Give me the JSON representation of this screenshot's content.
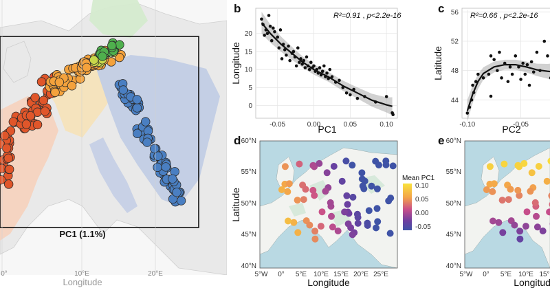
{
  "panel_a": {
    "box_label": "PC1 (1.1%)",
    "xlabel": "Longitude",
    "ticks": [
      "0°",
      "10°E",
      "20°E"
    ]
  },
  "chart_data": [
    {
      "panel": "b",
      "type": "scatter",
      "xlabel": "PC1",
      "ylabel": "Longitude",
      "stat_r2": "R²=0.91",
      "stat_sep": " , ",
      "stat_p": "p<2.2e-16",
      "xlim": [
        -0.08,
        0.115
      ],
      "ylim": [
        -3.5,
        27
      ],
      "xticks": [
        -0.05,
        0.0,
        0.05,
        0.1
      ],
      "xtick_labels": [
        "-0.05",
        "0.00",
        "0.05",
        "0.10"
      ],
      "yticks": [
        0,
        5,
        10,
        15,
        20
      ],
      "yticks_labels": [
        "0",
        "5",
        "10",
        "15",
        "20"
      ],
      "grid": true,
      "trend": [
        [
          -0.072,
          23
        ],
        [
          -0.06,
          20
        ],
        [
          -0.045,
          17
        ],
        [
          -0.03,
          14.5
        ],
        [
          -0.015,
          12
        ],
        [
          0.0,
          10
        ],
        [
          0.02,
          8
        ],
        [
          0.04,
          5.5
        ],
        [
          0.06,
          3.5
        ],
        [
          0.08,
          1.5
        ],
        [
          0.1,
          0.2
        ],
        [
          0.108,
          -0.2
        ]
      ],
      "points": [
        [
          -0.072,
          24
        ],
        [
          -0.07,
          22.5
        ],
        [
          -0.068,
          19.5
        ],
        [
          -0.066,
          21
        ],
        [
          -0.064,
          20
        ],
        [
          -0.062,
          25
        ],
        [
          -0.06,
          22
        ],
        [
          -0.058,
          18
        ],
        [
          -0.056,
          21.5
        ],
        [
          -0.054,
          20.5
        ],
        [
          -0.05,
          19
        ],
        [
          -0.048,
          16
        ],
        [
          -0.046,
          21
        ],
        [
          -0.044,
          13
        ],
        [
          -0.042,
          17
        ],
        [
          -0.04,
          15.5
        ],
        [
          -0.038,
          14
        ],
        [
          -0.035,
          16.5
        ],
        [
          -0.033,
          12.5
        ],
        [
          -0.03,
          14.5
        ],
        [
          -0.028,
          15
        ],
        [
          -0.026,
          13.5
        ],
        [
          -0.024,
          11
        ],
        [
          -0.022,
          16
        ],
        [
          -0.02,
          12
        ],
        [
          -0.018,
          13
        ],
        [
          -0.016,
          11.5
        ],
        [
          -0.014,
          12.5
        ],
        [
          -0.012,
          10.5
        ],
        [
          -0.01,
          13.5
        ],
        [
          -0.008,
          11
        ],
        [
          -0.006,
          10
        ],
        [
          -0.004,
          12
        ],
        [
          -0.002,
          10.5
        ],
        [
          0.0,
          11
        ],
        [
          0.002,
          9.5
        ],
        [
          0.004,
          10
        ],
        [
          0.006,
          9
        ],
        [
          0.008,
          10.5
        ],
        [
          0.01,
          8.5
        ],
        [
          0.012,
          9.5
        ],
        [
          0.014,
          11
        ],
        [
          0.016,
          8
        ],
        [
          0.018,
          9
        ],
        [
          0.02,
          7.5
        ],
        [
          0.022,
          10
        ],
        [
          0.025,
          8
        ],
        [
          0.03,
          6.5
        ],
        [
          0.035,
          7
        ],
        [
          0.04,
          5
        ],
        [
          0.045,
          3.5
        ],
        [
          0.05,
          3
        ],
        [
          0.055,
          4.5
        ],
        [
          0.06,
          2
        ],
        [
          0.07,
          2.5
        ],
        [
          0.085,
          1
        ],
        [
          0.1,
          2.5
        ],
        [
          0.108,
          -2
        ],
        [
          0.109,
          -2.5
        ]
      ]
    },
    {
      "panel": "c",
      "type": "scatter",
      "xlabel": "PC2",
      "ylabel": "Latitude",
      "stat_r2": "R²=0.66",
      "stat_sep": " , ",
      "stat_p": "p<2.2e-16",
      "xlim": [
        -0.105,
        -0.015
      ],
      "ylim": [
        41.5,
        56.5
      ],
      "xticks": [
        -0.1,
        -0.05
      ],
      "xtick_labels": [
        "-0.10",
        "-0.05"
      ],
      "yticks": [
        44,
        48,
        52,
        56
      ],
      "yticks_labels": [
        "44",
        "48",
        "52",
        "56"
      ],
      "grid": true,
      "trend": [
        [
          -0.1,
          42.5
        ],
        [
          -0.095,
          44.8
        ],
        [
          -0.09,
          46.5
        ],
        [
          -0.085,
          47.6
        ],
        [
          -0.075,
          48.5
        ],
        [
          -0.065,
          48.8
        ],
        [
          -0.055,
          48.8
        ],
        [
          -0.045,
          48.5
        ],
        [
          -0.035,
          48.1
        ],
        [
          -0.025,
          47.9
        ],
        [
          -0.018,
          47.8
        ]
      ],
      "points": [
        [
          -0.1,
          42.2
        ],
        [
          -0.098,
          43
        ],
        [
          -0.096,
          44
        ],
        [
          -0.094,
          45
        ],
        [
          -0.092,
          46.5
        ],
        [
          -0.09,
          47.5
        ],
        [
          -0.085,
          47
        ],
        [
          -0.08,
          47.5
        ],
        [
          -0.078,
          50
        ],
        [
          -0.075,
          49.5
        ],
        [
          -0.072,
          48
        ],
        [
          -0.07,
          50.5
        ],
        [
          -0.068,
          47
        ],
        [
          -0.065,
          49
        ],
        [
          -0.062,
          46.5
        ],
        [
          -0.06,
          48.5
        ],
        [
          -0.058,
          47.5
        ],
        [
          -0.055,
          50
        ],
        [
          -0.052,
          48.5
        ],
        [
          -0.05,
          46.8
        ],
        [
          -0.048,
          49
        ],
        [
          -0.046,
          47.5
        ],
        [
          -0.044,
          48.8
        ],
        [
          -0.042,
          46
        ],
        [
          -0.04,
          49.2
        ],
        [
          -0.038,
          47.8
        ],
        [
          -0.035,
          50.5
        ],
        [
          -0.032,
          48
        ],
        [
          -0.028,
          52
        ],
        [
          -0.025,
          50
        ],
        [
          -0.022,
          47
        ],
        [
          -0.02,
          48.5
        ],
        [
          -0.078,
          44.5
        ],
        [
          -0.095,
          46
        ]
      ]
    }
  ],
  "panel_d": {
    "xlabel": "Longitude",
    "ylabel": "Latitude",
    "xticks": [
      "5°W",
      "0°",
      "5°E",
      "10°E",
      "15°E",
      "20°E",
      "25°E"
    ],
    "yticks": [
      "60°N",
      "55°N",
      "50°N",
      "45°N",
      "40°N"
    ],
    "legend_title": "Mean PC1",
    "legend_ticks": [
      "0.10",
      "0.05",
      "0.00",
      "-0.05"
    ]
  },
  "panel_e": {
    "xlabel": "Longitude",
    "xticks": [
      "5°W",
      "0°",
      "5°E",
      "10°E",
      "15°"
    ],
    "yticks": [
      "60°N",
      "55°N",
      "50°N",
      "45°N",
      "40°N"
    ]
  },
  "colors": {
    "pc1_high": "#f9d73c",
    "pc1_mid": "#c94f8a",
    "pc1_low": "#3f53a6",
    "sea": "#b9d9e3",
    "land": "#f2f3f0",
    "blue_cluster": "#4a7fc2",
    "orange_cluster": "#f4a23c",
    "red_cluster": "#e0562a",
    "green_cluster": "#4fb04d"
  }
}
